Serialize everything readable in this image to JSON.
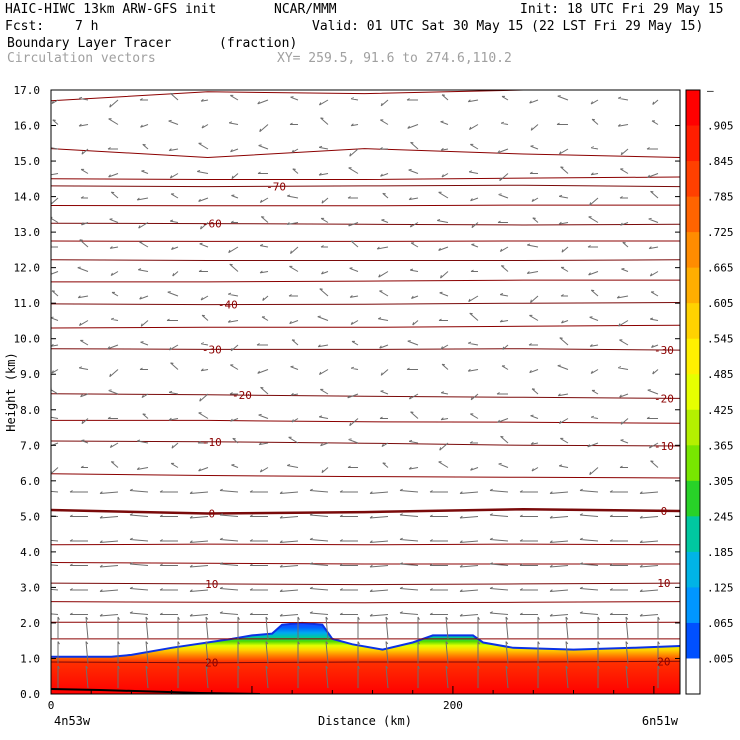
{
  "header": {
    "model": "HAIC-HIWC 13km ARW-GFS init",
    "org": "NCAR/MMM",
    "init": "Init: 18 UTC Fri 29 May 15",
    "fcst_label": "Fcst:",
    "fcst_value": "7 h",
    "valid": "Valid: 01 UTC Sat 30 May 15 (22 LST Fri 29 May 15)",
    "field1_name": "Boundary Layer Tracer",
    "field1_units": "(fraction)",
    "field2_name": "Circulation vectors",
    "xy": "XY= 259.5, 91.6 to 274.6,110.2"
  },
  "chart_data": {
    "type": "cross-section",
    "ylabel": "Height (km)",
    "xlabel": "Distance (km)",
    "xlim": [
      0,
      313
    ],
    "ylim": [
      0,
      17
    ],
    "yticks": [
      "0.0",
      "1.0",
      "2.0",
      "3.0",
      "4.0",
      "5.0",
      "6.0",
      "7.0",
      "8.0",
      "9.0",
      "10.0",
      "11.0",
      "12.0",
      "13.0",
      "14.0",
      "15.0",
      "16.0",
      "17.0"
    ],
    "xticks": [
      {
        "value": 0,
        "label": "0"
      },
      {
        "value": 200,
        "label": "200"
      }
    ],
    "left_endpoint": "4n53w",
    "right_endpoint": "6n51w",
    "colorbar": {
      "labels": [
        "–",
        ".905",
        ".845",
        ".785",
        ".725",
        ".665",
        ".605",
        ".545",
        ".485",
        ".425",
        ".365",
        ".305",
        ".245",
        ".185",
        ".125",
        ".065",
        ".005"
      ],
      "colors": [
        "#ff0000",
        "#ff1e00",
        "#ff4000",
        "#ff6400",
        "#ff8c00",
        "#ffae00",
        "#ffd200",
        "#fff000",
        "#e6ff00",
        "#b4f000",
        "#78e600",
        "#28d228",
        "#00c8a0",
        "#00b4e6",
        "#0096ff",
        "#0050ff",
        "#ffffff"
      ]
    },
    "tracer_top": {
      "x": [
        0,
        30,
        40,
        60,
        90,
        100,
        110,
        115,
        125,
        135,
        140,
        150,
        165,
        180,
        190,
        210,
        215,
        230,
        260,
        290,
        313
      ],
      "y": [
        1.05,
        1.05,
        1.1,
        1.3,
        1.55,
        1.65,
        1.7,
        1.95,
        2.0,
        1.95,
        1.55,
        1.4,
        1.25,
        1.45,
        1.65,
        1.65,
        1.45,
        1.3,
        1.25,
        1.3,
        1.35
      ]
    },
    "temperature_contours": [
      {
        "label": "20",
        "y": [
          0.9,
          0.88,
          0.9,
          0.9,
          0.92
        ],
        "label_positions": [
          80,
          305
        ]
      },
      {
        "label": "10",
        "y": [
          3.12,
          3.1,
          3.08,
          3.1,
          3.12
        ],
        "label_positions": [
          80,
          305
        ]
      },
      {
        "label": "0",
        "y": [
          5.18,
          5.08,
          5.12,
          5.2,
          5.15
        ],
        "label_positions": [
          80,
          305
        ]
      },
      {
        "label": "-10",
        "y": [
          7.12,
          7.1,
          7.06,
          7.0,
          6.98
        ],
        "label_positions": [
          80,
          305
        ]
      },
      {
        "label": "-20",
        "y": [
          8.45,
          8.42,
          8.38,
          8.35,
          8.32
        ],
        "label_positions": [
          95,
          305
        ]
      },
      {
        "label": "-30",
        "y": [
          9.72,
          9.7,
          9.7,
          9.72,
          9.68
        ],
        "label_positions": [
          80,
          305
        ]
      },
      {
        "label": "-40",
        "y": [
          10.98,
          10.96,
          10.97,
          11.0,
          11.02
        ],
        "label_positions": [
          88
        ]
      },
      {
        "label": "-50",
        "y": [
          12.22,
          12.2,
          12.2,
          12.2,
          12.22
        ],
        "label_positions": []
      },
      {
        "label": "-60",
        "y": [
          13.25,
          13.24,
          13.22,
          13.2,
          13.22
        ],
        "label_positions": [
          80
        ]
      },
      {
        "label": "-70",
        "y": [
          14.3,
          14.28,
          14.3,
          14.32,
          14.28
        ],
        "label_positions": [
          112
        ]
      }
    ],
    "theta_contours": [
      {
        "y": [
          1.55,
          1.55,
          1.55,
          1.55,
          1.55
        ]
      },
      {
        "y": [
          2.02,
          2.02,
          2.0,
          2.0,
          2.02
        ]
      },
      {
        "y": [
          2.6,
          2.58,
          2.57,
          2.58,
          2.6
        ]
      },
      {
        "y": [
          3.7,
          3.68,
          3.66,
          3.66,
          3.66
        ]
      },
      {
        "y": [
          4.2,
          4.22,
          4.2,
          4.22,
          4.2
        ]
      },
      {
        "y": [
          6.2,
          6.15,
          6.12,
          6.1,
          6.08
        ]
      },
      {
        "y": [
          7.7,
          7.7,
          7.66,
          7.65,
          7.62
        ]
      },
      {
        "y": [
          10.3,
          10.32,
          10.32,
          10.35,
          10.38
        ]
      },
      {
        "y": [
          11.6,
          11.6,
          11.62,
          11.65,
          11.65
        ]
      },
      {
        "y": [
          12.75,
          12.74,
          12.74,
          12.75,
          12.75
        ]
      },
      {
        "y": [
          13.75,
          13.74,
          13.74,
          13.76,
          13.76
        ]
      },
      {
        "y": [
          14.5,
          14.48,
          14.48,
          14.52,
          14.55
        ]
      },
      {
        "y": [
          15.35,
          15.1,
          15.35,
          15.2,
          15.1
        ]
      },
      {
        "y": [
          16.7,
          16.95,
          16.9,
          17.0,
          17.0
        ]
      }
    ]
  }
}
